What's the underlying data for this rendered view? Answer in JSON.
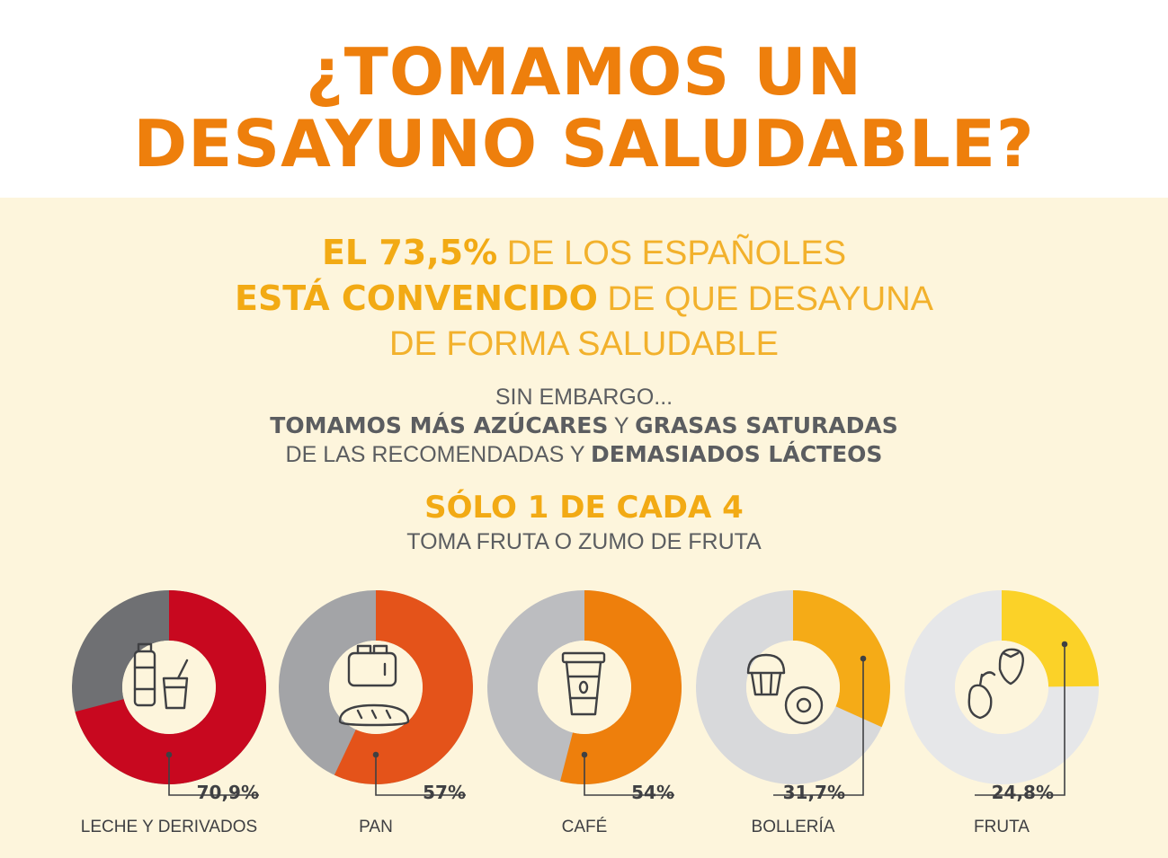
{
  "header": {
    "title_line1": "¿TOMAMOS UN",
    "title_line2": "DESAYUNO SALUDABLE?"
  },
  "lead": {
    "l1_bold": "EL 73,5%",
    "l1_rest": " DE LOS ESPAÑOLES",
    "l2_bold": "ESTÁ CONVENCIDO",
    "l2_rest": " DE QUE DESAYUNA",
    "l3": "DE FORMA SALUDABLE"
  },
  "sub": {
    "l1": "SIN EMBARGO...",
    "l2_bold_a": "TOMAMOS MÁS AZÚCARES",
    "l2_mid": " Y ",
    "l2_bold_b": "GRASAS SATURADAS",
    "l3_rest": "DE LAS RECOMENDADAS Y ",
    "l3_bold": "DEMASIADOS LÁCTEOS"
  },
  "fact": {
    "strong": "SÓLO 1 DE CADA 4",
    "sub": "TOMA FRUTA O ZUMO DE FRUTA"
  },
  "chart_data": {
    "type": "pie",
    "unit": "%",
    "series": [
      {
        "category": "LECHE Y DERIVADOS",
        "value": 70.9,
        "label": "70,9%",
        "color": "#c8081f",
        "rest_color": "#6f7073",
        "icon": "milk-yogurt-icon"
      },
      {
        "category": "PAN",
        "value": 57,
        "label": "57%",
        "color": "#e4531a",
        "rest_color": "#a3a4a7",
        "icon": "toaster-bread-icon"
      },
      {
        "category": "CAFÉ",
        "value": 54,
        "label": "54%",
        "color": "#ee7f0c",
        "rest_color": "#bcbdc0",
        "icon": "coffee-cup-icon"
      },
      {
        "category": "BOLLERÍA",
        "value": 31.7,
        "label": "31,7%",
        "color": "#f5ab17",
        "rest_color": "#d8d9db",
        "icon": "muffin-donut-icon"
      },
      {
        "category": "FRUTA",
        "value": 24.8,
        "label": "24,8%",
        "color": "#fbd228",
        "rest_color": "#e6e7e9",
        "icon": "apple-strawberry-icon"
      }
    ]
  }
}
